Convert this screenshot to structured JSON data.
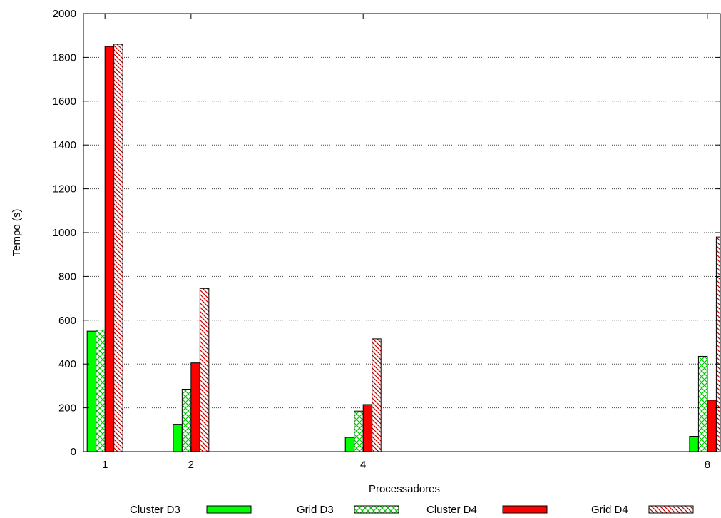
{
  "chart_data": {
    "type": "bar",
    "title": "",
    "xlabel": "Processadores",
    "ylabel": "Tempo (s)",
    "x": [
      1,
      2,
      4,
      8
    ],
    "x_tick_labels": [
      "1",
      "2",
      "4",
      "8"
    ],
    "xlim": [
      0.75,
      8.15
    ],
    "ylim": [
      0,
      2000
    ],
    "y_ticks": [
      0,
      200,
      400,
      600,
      800,
      1000,
      1200,
      1400,
      1600,
      1800,
      2000
    ],
    "grid": "horizontal dotted",
    "legend_position": "bottom",
    "series": [
      {
        "name": "Cluster D3",
        "values": [
          550,
          125,
          65,
          70
        ],
        "color": "#00ff00",
        "pattern": "solid"
      },
      {
        "name": "Grid D3",
        "values": [
          555,
          285,
          185,
          435
        ],
        "color": "#00cc00",
        "pattern": "crosshatch"
      },
      {
        "name": "Cluster D4",
        "values": [
          1850,
          405,
          215,
          235
        ],
        "color": "#ff0000",
        "pattern": "solid"
      },
      {
        "name": "Grid D4",
        "values": [
          1860,
          745,
          515,
          980
        ],
        "color": "#cc0000",
        "pattern": "diagonal"
      }
    ]
  }
}
